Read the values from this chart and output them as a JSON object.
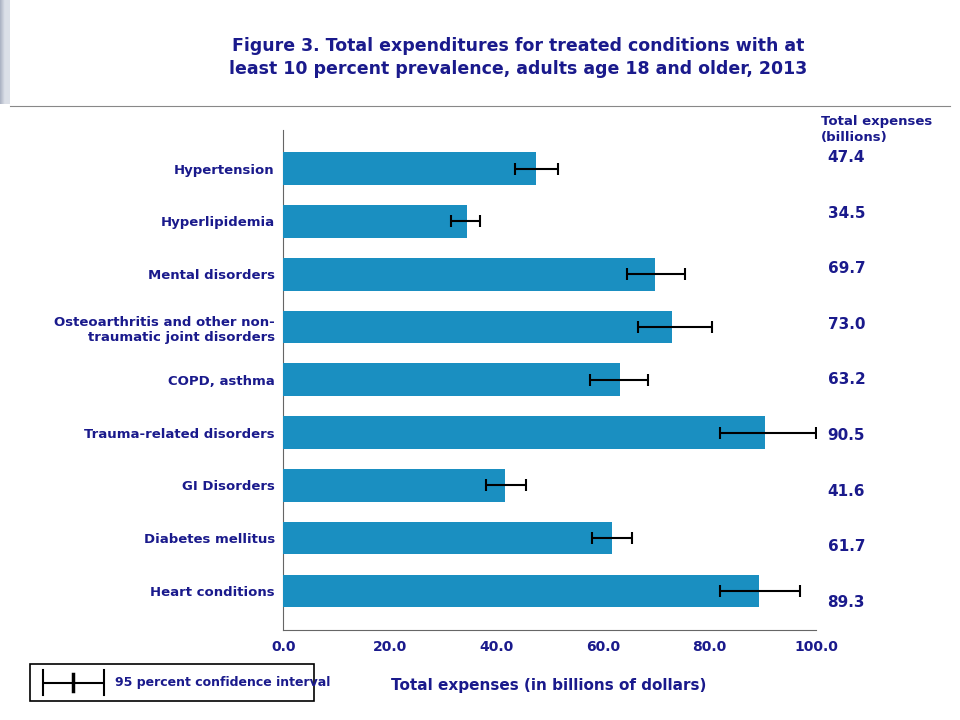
{
  "title_line1": "Figure 3. Total expenditures for treated conditions with at",
  "title_line2": "least 10 percent prevalence, adults age 18 and older, 2013",
  "title_color": "#1a1a8c",
  "bar_color": "#1a8fc1",
  "categories": [
    "Hypertension",
    "Hyperlipidemia",
    "Mental disorders",
    "Osteoarthritis and other non-\ntraumatic joint disorders",
    "COPD, asthma",
    "Trauma-related disorders",
    "GI Disorders",
    "Diabetes mellitus",
    "Heart conditions"
  ],
  "values": [
    47.4,
    34.5,
    69.7,
    73.0,
    63.2,
    90.5,
    41.6,
    61.7,
    89.3
  ],
  "ci_lower": [
    43.5,
    31.5,
    64.5,
    66.5,
    57.5,
    82.0,
    38.0,
    58.0,
    82.0
  ],
  "ci_upper": [
    51.5,
    37.0,
    75.5,
    80.5,
    68.5,
    100.0,
    45.5,
    65.5,
    97.0
  ],
  "value_labels": [
    "47.4",
    "34.5",
    "69.7",
    "73.0",
    "63.2",
    "90.5",
    "41.6",
    "61.7",
    "89.3"
  ],
  "xlim": [
    0,
    100
  ],
  "xticks": [
    0.0,
    20.0,
    40.0,
    60.0,
    80.0,
    100.0
  ],
  "xlabel": "Total expenses (in billions of dollars)",
  "right_header": "Total expenses\n(billions)",
  "label_color": "#1a1a8c",
  "header_bg_left": "#b0b8c8",
  "header_bg_right": "#d0d8e4",
  "legend_label": "95 percent confidence interval",
  "separator_color": "#888888"
}
